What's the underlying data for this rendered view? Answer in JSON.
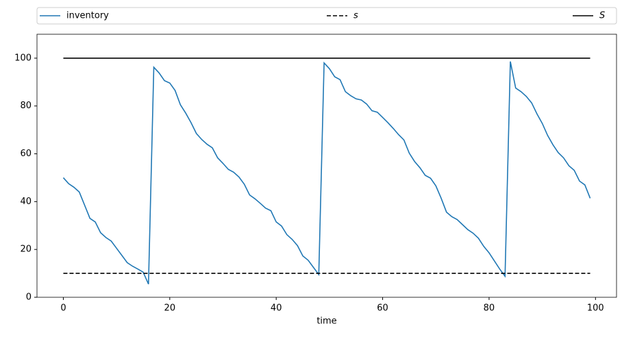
{
  "chart_data": {
    "type": "line",
    "x_label": "time",
    "xlim": [
      -4.95,
      103.95
    ],
    "ylim": [
      0,
      110
    ],
    "xticks": [
      0,
      20,
      40,
      60,
      80,
      100
    ],
    "yticks": [
      0,
      20,
      40,
      60,
      80,
      100
    ],
    "legend_loc": "top",
    "series": [
      {
        "name": "inventory",
        "color": "#1f77b4",
        "dash": "solid",
        "x": [
          0,
          1,
          2,
          3,
          4,
          5,
          6,
          7,
          8,
          9,
          10,
          11,
          12,
          13,
          14,
          15,
          16,
          17,
          18,
          19,
          20,
          21,
          22,
          23,
          24,
          25,
          26,
          27,
          28,
          29,
          30,
          31,
          32,
          33,
          34,
          35,
          36,
          37,
          38,
          39,
          40,
          41,
          42,
          43,
          44,
          45,
          46,
          47,
          48,
          49,
          50,
          51,
          52,
          53,
          54,
          55,
          56,
          57,
          58,
          59,
          60,
          61,
          62,
          63,
          64,
          65,
          66,
          67,
          68,
          69,
          70,
          71,
          72,
          73,
          74,
          75,
          76,
          77,
          78,
          79,
          80,
          81,
          82,
          83,
          84,
          85,
          86,
          87,
          88,
          89,
          90,
          91,
          92,
          93,
          94,
          95,
          96,
          97,
          98,
          99
        ],
        "values": [
          50,
          47.5,
          46,
          44,
          38.5,
          33,
          31.5,
          27,
          25,
          23.5,
          20.5,
          17.5,
          14.5,
          13,
          11.8,
          10.5,
          5.5,
          96.2,
          93.8,
          90.6,
          89.6,
          86.5,
          80.5,
          77,
          73,
          68.5,
          66,
          64,
          62.5,
          58.3,
          56,
          53.5,
          52.3,
          50.3,
          47.3,
          42.8,
          41.2,
          39.3,
          37.3,
          36.2,
          31.5,
          29.8,
          26.2,
          24.2,
          21.6,
          17.3,
          15.5,
          12.5,
          9.5,
          98,
          95.6,
          92.2,
          91,
          86,
          84.3,
          83,
          82.5,
          80.8,
          78,
          77.4,
          75.2,
          73,
          70.6,
          68,
          65.8,
          60.3,
          56.8,
          54.2,
          51,
          49.8,
          46.6,
          41.4,
          35.6,
          33.7,
          32.5,
          30.4,
          28.3,
          26.8,
          24.7,
          21.3,
          18.6,
          15.2,
          11.8,
          8.8,
          98.6,
          87.5,
          86,
          84,
          81.3,
          76.7,
          72.7,
          67.7,
          63.8,
          60.5,
          58.3,
          55,
          53.1,
          48.6,
          47,
          41.4
        ]
      },
      {
        "name": "s",
        "color": "#000000",
        "dash": "dashed",
        "x": [
          0,
          99
        ],
        "values": [
          10,
          10
        ]
      },
      {
        "name": "S",
        "color": "#000000",
        "dash": "solid",
        "x": [
          0,
          99
        ],
        "values": [
          100,
          100
        ]
      }
    ]
  }
}
